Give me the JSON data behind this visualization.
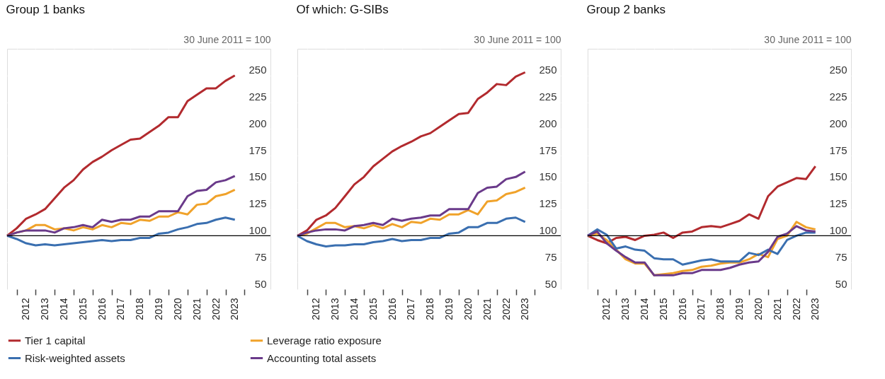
{
  "chart_data": [
    {
      "type": "line",
      "title": "Group 1 banks",
      "ylabel": "30 June 2011 = 100",
      "x": [
        "2011-06-30",
        "2011-12-31",
        "2012-06-30",
        "2012-12-31",
        "2013-06-30",
        "2013-12-31",
        "2014-06-30",
        "2014-12-31",
        "2015-06-30",
        "2015-12-31",
        "2016-06-30",
        "2016-12-31",
        "2017-06-30",
        "2017-12-31",
        "2018-06-30",
        "2018-12-31",
        "2019-06-30",
        "2019-12-31",
        "2020-06-30",
        "2020-12-31",
        "2021-06-30",
        "2021-12-31",
        "2022-06-30",
        "2022-12-31",
        "2023-06-30"
      ],
      "series": [
        {
          "name": "Tier 1 capital",
          "color": "#b22a2e",
          "values": [
            100,
            107,
            116,
            120,
            125,
            135,
            145,
            152,
            162,
            169,
            174,
            180,
            185,
            190,
            191,
            197,
            203,
            211,
            211,
            226,
            232,
            238,
            238,
            245,
            250
          ]
        },
        {
          "name": "Leverage ratio exposure",
          "color": "#f0a22a",
          "values": [
            100,
            103,
            105,
            110,
            110,
            106,
            107,
            105,
            108,
            106,
            110,
            108,
            112,
            111,
            115,
            114,
            118,
            118,
            122,
            120,
            129,
            130,
            137,
            139,
            143
          ]
        },
        {
          "name": "Risk-weighted assets",
          "color": "#3a6fb0",
          "values": [
            100,
            97,
            93,
            91,
            92,
            91,
            92,
            93,
            94,
            95,
            96,
            95,
            96,
            96,
            98,
            98,
            102,
            103,
            106,
            108,
            111,
            112,
            115,
            117,
            115
          ]
        },
        {
          "name": "Accounting total assets",
          "color": "#6a3a8a",
          "values": [
            100,
            103,
            105,
            105,
            105,
            103,
            107,
            108,
            110,
            108,
            115,
            113,
            115,
            115,
            118,
            118,
            123,
            123,
            123,
            137,
            142,
            143,
            150,
            152,
            156
          ]
        }
      ],
      "xlim": [
        "2011-06-30",
        "2025-05-15"
      ],
      "xticks": [
        {
          "value": "2012-01-01",
          "label": null
        },
        {
          "value": "2013-01-01",
          "label": null
        },
        {
          "value": "2014-01-01",
          "label": null
        },
        {
          "value": "2015-01-01",
          "label": null
        },
        {
          "value": "2016-01-01",
          "label": null
        },
        {
          "value": "2017-01-01",
          "label": null
        },
        {
          "value": "2018-01-01",
          "label": null
        },
        {
          "value": "2019-01-01",
          "label": null
        },
        {
          "value": "2020-01-01",
          "label": null
        },
        {
          "value": "2021-01-01",
          "label": null
        },
        {
          "value": "2022-01-01",
          "label": null
        },
        {
          "value": "2023-01-01",
          "label": null
        },
        {
          "value": "2024-01-01",
          "label": null
        },
        {
          "value": "2012-07-01",
          "label": "2012"
        },
        {
          "value": "2013-07-01",
          "label": "2013"
        },
        {
          "value": "2014-07-01",
          "label": "2014"
        },
        {
          "value": "2015-07-01",
          "label": "2015"
        },
        {
          "value": "2016-07-01",
          "label": "2016"
        },
        {
          "value": "2017-07-01",
          "label": "2017"
        },
        {
          "value": "2018-07-01",
          "label": "2018"
        },
        {
          "value": "2019-07-01",
          "label": "2019"
        },
        {
          "value": "2020-07-01",
          "label": "2020"
        },
        {
          "value": "2021-07-01",
          "label": "2021"
        },
        {
          "value": "2022-07-01",
          "label": "2022"
        },
        {
          "value": "2023-07-01",
          "label": "2023"
        }
      ],
      "ylim": [
        50,
        275
      ],
      "yticks": [
        50,
        75,
        100,
        125,
        150,
        175,
        200,
        225,
        250
      ],
      "ref_lines": [
        {
          "axis": "y",
          "value": 100,
          "color": "#000000"
        }
      ],
      "grid": true,
      "legend": "bottom",
      "line_style": "solid",
      "marker": "none"
    },
    {
      "type": "line",
      "title": "Of which: G-SIBs",
      "ylabel": "30 June 2011 = 100",
      "x": [
        "2011-06-30",
        "2011-12-31",
        "2012-06-30",
        "2012-12-31",
        "2013-06-30",
        "2013-12-31",
        "2014-06-30",
        "2014-12-31",
        "2015-06-30",
        "2015-12-31",
        "2016-06-30",
        "2016-12-31",
        "2017-06-30",
        "2017-12-31",
        "2018-06-30",
        "2018-12-31",
        "2019-06-30",
        "2019-12-31",
        "2020-06-30",
        "2020-12-31",
        "2021-06-30",
        "2021-12-31",
        "2022-06-30",
        "2022-12-31",
        "2023-06-30"
      ],
      "series": [
        {
          "name": "Tier 1 capital",
          "color": "#b22a2e",
          "values": [
            100,
            105,
            115,
            119,
            126,
            137,
            148,
            155,
            165,
            172,
            179,
            184,
            188,
            193,
            196,
            202,
            208,
            214,
            215,
            228,
            234,
            242,
            241,
            249,
            253
          ]
        },
        {
          "name": "Leverage ratio exposure",
          "color": "#f0a22a",
          "values": [
            100,
            102,
            107,
            112,
            112,
            108,
            109,
            107,
            110,
            107,
            111,
            108,
            113,
            112,
            116,
            115,
            120,
            120,
            124,
            120,
            132,
            133,
            139,
            141,
            145
          ]
        },
        {
          "name": "Risk-weighted assets",
          "color": "#3a6fb0",
          "values": [
            100,
            95,
            92,
            90,
            91,
            91,
            92,
            92,
            94,
            95,
            97,
            95,
            96,
            96,
            98,
            98,
            102,
            103,
            108,
            108,
            112,
            112,
            116,
            117,
            113
          ]
        },
        {
          "name": "Accounting total assets",
          "color": "#6a3a8a",
          "values": [
            100,
            103,
            105,
            106,
            106,
            105,
            109,
            110,
            112,
            110,
            116,
            114,
            116,
            117,
            119,
            119,
            125,
            125,
            125,
            140,
            145,
            146,
            153,
            155,
            160
          ]
        }
      ],
      "xlim": [
        "2011-06-30",
        "2025-05-15"
      ],
      "xticks": [
        {
          "value": "2012-01-01",
          "label": null
        },
        {
          "value": "2013-01-01",
          "label": null
        },
        {
          "value": "2014-01-01",
          "label": null
        },
        {
          "value": "2015-01-01",
          "label": null
        },
        {
          "value": "2016-01-01",
          "label": null
        },
        {
          "value": "2017-01-01",
          "label": null
        },
        {
          "value": "2018-01-01",
          "label": null
        },
        {
          "value": "2019-01-01",
          "label": null
        },
        {
          "value": "2020-01-01",
          "label": null
        },
        {
          "value": "2021-01-01",
          "label": null
        },
        {
          "value": "2022-01-01",
          "label": null
        },
        {
          "value": "2023-01-01",
          "label": null
        },
        {
          "value": "2024-01-01",
          "label": null
        },
        {
          "value": "2012-07-01",
          "label": "2012"
        },
        {
          "value": "2013-07-01",
          "label": "2013"
        },
        {
          "value": "2014-07-01",
          "label": "2014"
        },
        {
          "value": "2015-07-01",
          "label": "2015"
        },
        {
          "value": "2016-07-01",
          "label": "2016"
        },
        {
          "value": "2017-07-01",
          "label": "2017"
        },
        {
          "value": "2018-07-01",
          "label": "2018"
        },
        {
          "value": "2019-07-01",
          "label": "2019"
        },
        {
          "value": "2020-07-01",
          "label": "2020"
        },
        {
          "value": "2021-07-01",
          "label": "2021"
        },
        {
          "value": "2022-07-01",
          "label": "2022"
        },
        {
          "value": "2023-07-01",
          "label": "2023"
        }
      ],
      "ylim": [
        50,
        275
      ],
      "yticks": [
        50,
        75,
        100,
        125,
        150,
        175,
        200,
        225,
        250
      ],
      "ref_lines": [
        {
          "axis": "y",
          "value": 100,
          "color": "#000000"
        }
      ],
      "grid": true,
      "legend": "bottom",
      "line_style": "solid",
      "marker": "none"
    },
    {
      "type": "line",
      "title": "Group 2 banks",
      "ylabel": "30 June 2011 = 100",
      "x": [
        "2011-06-30",
        "2011-12-31",
        "2012-06-30",
        "2012-12-31",
        "2013-06-30",
        "2013-12-31",
        "2014-06-30",
        "2014-12-31",
        "2015-06-30",
        "2015-12-31",
        "2016-06-30",
        "2016-12-31",
        "2017-06-30",
        "2017-12-31",
        "2018-06-30",
        "2018-12-31",
        "2019-06-30",
        "2019-12-31",
        "2020-06-30",
        "2020-12-31",
        "2021-06-30",
        "2021-12-31",
        "2022-06-30",
        "2022-12-31",
        "2023-06-30"
      ],
      "series": [
        {
          "name": "Tier 1 capital",
          "color": "#b22a2e",
          "values": [
            100,
            96,
            93,
            98,
            99,
            96,
            100,
            101,
            103,
            98,
            103,
            104,
            108,
            109,
            108,
            111,
            114,
            120,
            116,
            137,
            146,
            150,
            154,
            153,
            165
          ]
        },
        {
          "name": "Leverage ratio exposure",
          "color": "#f0a22a",
          "values": [
            100,
            102,
            96,
            87,
            78,
            74,
            74,
            63,
            64,
            65,
            67,
            68,
            71,
            72,
            74,
            75,
            75,
            78,
            83,
            80,
            97,
            100,
            113,
            108,
            106
          ]
        },
        {
          "name": "Risk-weighted assets",
          "color": "#3a6fb0",
          "values": [
            100,
            106,
            101,
            88,
            90,
            87,
            86,
            79,
            78,
            78,
            73,
            75,
            77,
            78,
            76,
            76,
            76,
            84,
            82,
            87,
            83,
            96,
            100,
            103,
            103
          ]
        },
        {
          "name": "Accounting total assets",
          "color": "#6a3a8a",
          "values": [
            100,
            104,
            93,
            86,
            80,
            75,
            75,
            63,
            63,
            63,
            65,
            65,
            68,
            68,
            68,
            70,
            73,
            75,
            76,
            85,
            99,
            102,
            109,
            105,
            104
          ]
        }
      ],
      "xlim": [
        "2011-06-30",
        "2025-05-15"
      ],
      "xticks": [
        {
          "value": "2012-01-01",
          "label": null
        },
        {
          "value": "2013-01-01",
          "label": null
        },
        {
          "value": "2014-01-01",
          "label": null
        },
        {
          "value": "2015-01-01",
          "label": null
        },
        {
          "value": "2016-01-01",
          "label": null
        },
        {
          "value": "2017-01-01",
          "label": null
        },
        {
          "value": "2018-01-01",
          "label": null
        },
        {
          "value": "2019-01-01",
          "label": null
        },
        {
          "value": "2020-01-01",
          "label": null
        },
        {
          "value": "2021-01-01",
          "label": null
        },
        {
          "value": "2022-01-01",
          "label": null
        },
        {
          "value": "2023-01-01",
          "label": null
        },
        {
          "value": "2012-07-01",
          "label": "2012"
        },
        {
          "value": "2013-07-01",
          "label": "2013"
        },
        {
          "value": "2014-07-01",
          "label": "2014"
        },
        {
          "value": "2015-07-01",
          "label": "2015"
        },
        {
          "value": "2016-07-01",
          "label": "2016"
        },
        {
          "value": "2017-07-01",
          "label": "2017"
        },
        {
          "value": "2018-07-01",
          "label": "2018"
        },
        {
          "value": "2019-07-01",
          "label": "2019"
        },
        {
          "value": "2020-07-01",
          "label": "2020"
        },
        {
          "value": "2021-07-01",
          "label": "2021"
        },
        {
          "value": "2022-07-01",
          "label": "2022"
        },
        {
          "value": "2023-07-01",
          "label": "2023"
        }
      ],
      "ylim": [
        50,
        275
      ],
      "yticks": [
        50,
        75,
        100,
        125,
        150,
        175,
        200,
        225,
        250
      ],
      "ref_lines": [
        {
          "axis": "y",
          "value": 100,
          "color": "#000000"
        }
      ],
      "grid": true,
      "legend": "bottom",
      "line_style": "solid",
      "marker": "none"
    }
  ]
}
